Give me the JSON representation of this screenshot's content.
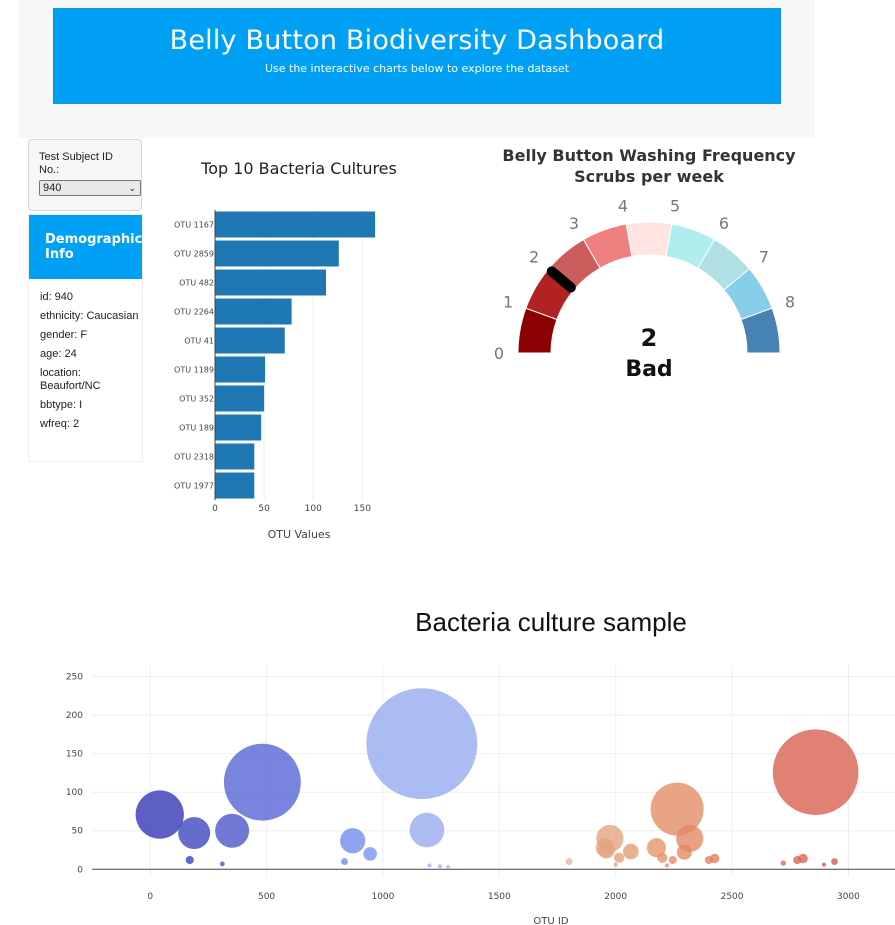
{
  "header": {
    "title": "Belly Button Biodiversity Dashboard",
    "subtitle": "Use the interactive charts below to explore the dataset"
  },
  "selector": {
    "label": "Test Subject ID No.:",
    "selected": "940"
  },
  "demographics": {
    "title": "Demographic Info",
    "rows": [
      "id: 940",
      "ethnicity: Caucasian",
      "gender: F",
      "age: 24",
      "location: Beaufort/NC",
      "bbtype: I",
      "wfreq: 2"
    ]
  },
  "colors": {
    "header_bg": "#00a1f4",
    "bar": "#1f77b4"
  },
  "chart_data": [
    {
      "type": "bar",
      "orientation": "horizontal",
      "title": "Top 10 Bacteria Cultures",
      "xlabel": "OTU Values",
      "ylabel": "",
      "xlim": [
        0,
        170
      ],
      "xticks": [
        0,
        50,
        100,
        150
      ],
      "categories": [
        "OTU 1167",
        "OTU 2859",
        "OTU 482",
        "OTU 2264",
        "OTU 41",
        "OTU 1189",
        "OTU 352",
        "OTU 189",
        "OTU 2318",
        "OTU 1977"
      ],
      "values": [
        163,
        126,
        113,
        78,
        71,
        51,
        50,
        47,
        40,
        40
      ]
    },
    {
      "type": "gauge",
      "title": "Belly Button Washing Frequency",
      "subtitle": "Scrubs per week",
      "value": 2,
      "value_label": "Bad",
      "range": [
        0,
        9
      ],
      "tick_labels": [
        "0",
        "1",
        "2",
        "3",
        "4",
        "5",
        "6",
        "7",
        "8"
      ],
      "band_colors": [
        "#8b0000",
        "#b22222",
        "#cd5c5c",
        "#f08080",
        "#ffe4e1",
        "#afeeee",
        "#b0e0e6",
        "#87ceeb",
        "#4682b4"
      ]
    },
    {
      "type": "scatter",
      "title": "Bacteria culture sample",
      "xlabel": "OTU ID",
      "ylabel": "",
      "xlim": [
        -250,
        3200
      ],
      "ylim": [
        -10,
        265
      ],
      "xticks": [
        0,
        500,
        1000,
        1500,
        2000,
        2500,
        3000
      ],
      "yticks": [
        0,
        50,
        100,
        150,
        200,
        250
      ],
      "points": [
        {
          "x": 41,
          "y": 71,
          "r": 71
        },
        {
          "x": 189,
          "y": 47,
          "r": 47
        },
        {
          "x": 352,
          "y": 50,
          "r": 50
        },
        {
          "x": 482,
          "y": 113,
          "r": 113
        },
        {
          "x": 1167,
          "y": 163,
          "r": 163
        },
        {
          "x": 1189,
          "y": 51,
          "r": 51
        },
        {
          "x": 870,
          "y": 37,
          "r": 37
        },
        {
          "x": 945,
          "y": 20,
          "r": 20
        },
        {
          "x": 170,
          "y": 12,
          "r": 12
        },
        {
          "x": 310,
          "y": 7,
          "r": 7
        },
        {
          "x": 835,
          "y": 10,
          "r": 10
        },
        {
          "x": 1200,
          "y": 5,
          "r": 5
        },
        {
          "x": 1245,
          "y": 4,
          "r": 4
        },
        {
          "x": 1280,
          "y": 3,
          "r": 3
        },
        {
          "x": 1800,
          "y": 10,
          "r": 10
        },
        {
          "x": 1975,
          "y": 40,
          "r": 40
        },
        {
          "x": 1955,
          "y": 28,
          "r": 28
        },
        {
          "x": 1960,
          "y": 25,
          "r": 25
        },
        {
          "x": 2015,
          "y": 15,
          "r": 15
        },
        {
          "x": 2065,
          "y": 23,
          "r": 23
        },
        {
          "x": 2175,
          "y": 28,
          "r": 28
        },
        {
          "x": 2264,
          "y": 78,
          "r": 78
        },
        {
          "x": 2318,
          "y": 40,
          "r": 40
        },
        {
          "x": 2295,
          "y": 22,
          "r": 22
        },
        {
          "x": 2200,
          "y": 15,
          "r": 15
        },
        {
          "x": 2245,
          "y": 12,
          "r": 12
        },
        {
          "x": 2400,
          "y": 12,
          "r": 12
        },
        {
          "x": 2425,
          "y": 14,
          "r": 14
        },
        {
          "x": 2000,
          "y": 6,
          "r": 6
        },
        {
          "x": 2220,
          "y": 5,
          "r": 5
        },
        {
          "x": 2720,
          "y": 8,
          "r": 8
        },
        {
          "x": 2780,
          "y": 12,
          "r": 12
        },
        {
          "x": 2805,
          "y": 14,
          "r": 14
        },
        {
          "x": 2859,
          "y": 126,
          "r": 126
        },
        {
          "x": 2940,
          "y": 10,
          "r": 10
        },
        {
          "x": 2895,
          "y": 6,
          "r": 6
        }
      ]
    }
  ]
}
